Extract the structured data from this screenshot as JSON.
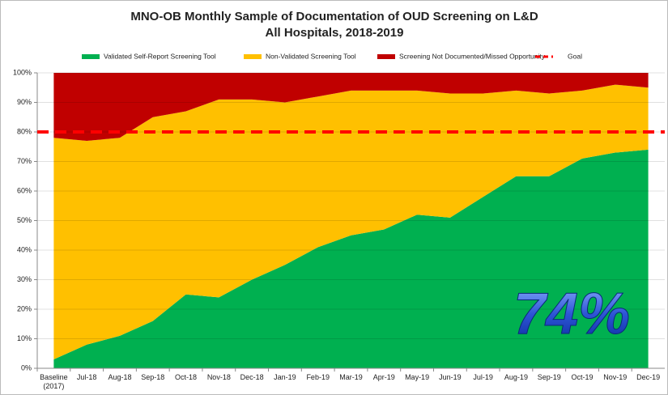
{
  "chart_data": {
    "type": "stacked_area",
    "title": "MNO-OB Monthly Sample of Documentation of OUD Screening on L&D",
    "subtitle": "All Hospitals, 2018-2019",
    "categories": [
      "Baseline (2017)",
      "Jul-18",
      "Aug-18",
      "Sep-18",
      "Oct-18",
      "Nov-18",
      "Dec-18",
      "Jan-19",
      "Feb-19",
      "Mar-19",
      "Apr-19",
      "May-19",
      "Jun-19",
      "Jul-19",
      "Aug-19",
      "Sep-19",
      "Oct-19",
      "Nov-19",
      "Dec-19"
    ],
    "series": [
      {
        "name": "Validated Self-Report Screening Tool",
        "color": "#00b050",
        "values": [
          3,
          8,
          11,
          16,
          25,
          24,
          30,
          35,
          41,
          45,
          47,
          52,
          51,
          58,
          65,
          65,
          71,
          73,
          74
        ]
      },
      {
        "name": "Non-Validated Screening Tool",
        "color": "#ffc000",
        "values": [
          75,
          69,
          67,
          69,
          62,
          67,
          61,
          55,
          51,
          49,
          47,
          42,
          42,
          35,
          29,
          28,
          23,
          23,
          21
        ]
      },
      {
        "name": "Screening Not Documented/Missed Opportunity",
        "color": "#c00000",
        "values": [
          22,
          23,
          22,
          15,
          13,
          9,
          9,
          10,
          8,
          6,
          6,
          6,
          7,
          7,
          6,
          7,
          6,
          4,
          5
        ]
      }
    ],
    "goal": {
      "name": "Goal",
      "value": 80,
      "color": "#ff0000"
    },
    "annotation": "74%",
    "ylim": [
      0,
      100
    ],
    "yticks": [
      {
        "value": 0,
        "label": "0%"
      },
      {
        "value": 10,
        "label": "10%"
      },
      {
        "value": 20,
        "label": "20%"
      },
      {
        "value": 30,
        "label": "30%"
      },
      {
        "value": 40,
        "label": "40%"
      },
      {
        "value": 50,
        "label": "50%"
      },
      {
        "value": 60,
        "label": "60%"
      },
      {
        "value": 70,
        "label": "70%"
      },
      {
        "value": 80,
        "label": "80%"
      },
      {
        "value": 90,
        "label": "90%"
      },
      {
        "value": 100,
        "label": "100%"
      }
    ],
    "grid": true
  }
}
